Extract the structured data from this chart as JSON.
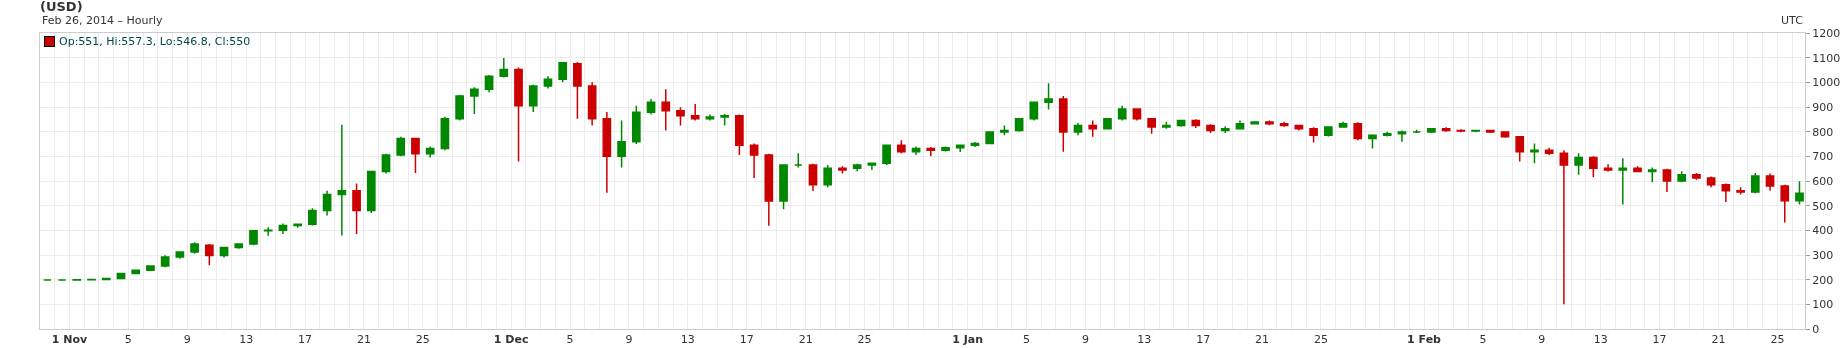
{
  "chart_data": {
    "type": "candlestick",
    "title": "(USD)",
    "subtitle": "Feb 26, 2014 – Hourly",
    "annotations": [
      "UTC",
      "Op:551, Hi:557.3, Lo:546.8, Cl:550"
    ],
    "x": [
      "2013-10-30T12:00",
      "2013-10-31T12:00",
      "2013-11-01T12:00",
      "2013-11-02T12:00",
      "2013-11-03T12:00",
      "2013-11-04T12:00",
      "2013-11-05T12:00",
      "2013-11-06T12:00",
      "2013-11-07T12:00",
      "2013-11-08T12:00",
      "2013-11-09T12:00",
      "2013-11-10T12:00",
      "2013-11-11T12:00",
      "2013-11-12T12:00",
      "2013-11-13T12:00",
      "2013-11-14T12:00",
      "2013-11-15T12:00",
      "2013-11-16T12:00",
      "2013-11-17T12:00",
      "2013-11-18T12:00",
      "2013-11-19T12:00",
      "2013-11-20T12:00",
      "2013-11-21T12:00",
      "2013-11-22T12:00",
      "2013-11-23T12:00",
      "2013-11-24T12:00",
      "2013-11-25T12:00",
      "2013-11-26T12:00",
      "2013-11-27T12:00",
      "2013-11-28T12:00",
      "2013-11-29T12:00",
      "2013-11-30T12:00",
      "2013-12-01T12:00",
      "2013-12-02T12:00",
      "2013-12-03T12:00",
      "2013-12-04T12:00",
      "2013-12-05T12:00",
      "2013-12-06T12:00",
      "2013-12-07T12:00",
      "2013-12-08T12:00",
      "2013-12-09T12:00",
      "2013-12-10T12:00",
      "2013-12-11T12:00",
      "2013-12-12T12:00",
      "2013-12-13T12:00",
      "2013-12-14T12:00",
      "2013-12-15T12:00",
      "2013-12-16T12:00",
      "2013-12-17T12:00",
      "2013-12-18T12:00",
      "2013-12-19T12:00",
      "2013-12-20T12:00",
      "2013-12-21T12:00",
      "2013-12-22T12:00",
      "2013-12-23T12:00",
      "2013-12-24T12:00",
      "2013-12-25T12:00",
      "2013-12-26T12:00",
      "2013-12-27T12:00",
      "2013-12-28T12:00",
      "2013-12-29T12:00",
      "2013-12-30T12:00",
      "2013-12-31T12:00",
      "2014-01-01T12:00",
      "2014-01-02T12:00",
      "2014-01-03T12:00",
      "2014-01-04T12:00",
      "2014-01-05T12:00",
      "2014-01-06T12:00",
      "2014-01-07T12:00",
      "2014-01-08T12:00",
      "2014-01-09T12:00",
      "2014-01-10T12:00",
      "2014-01-11T12:00",
      "2014-01-12T12:00",
      "2014-01-13T12:00",
      "2014-01-14T12:00",
      "2014-01-15T12:00",
      "2014-01-16T12:00",
      "2014-01-17T12:00",
      "2014-01-18T12:00",
      "2014-01-19T12:00",
      "2014-01-20T12:00",
      "2014-01-21T12:00",
      "2014-01-22T12:00",
      "2014-01-23T12:00",
      "2014-01-24T12:00",
      "2014-01-25T12:00",
      "2014-01-26T12:00",
      "2014-01-27T12:00",
      "2014-01-28T12:00",
      "2014-01-29T12:00",
      "2014-01-30T12:00",
      "2014-01-31T12:00",
      "2014-02-01T12:00",
      "2014-02-02T12:00",
      "2014-02-03T12:00",
      "2014-02-04T12:00",
      "2014-02-05T12:00",
      "2014-02-06T12:00",
      "2014-02-07T12:00",
      "2014-02-08T12:00",
      "2014-02-09T12:00",
      "2014-02-10T12:00",
      "2014-02-11T12:00",
      "2014-02-12T12:00",
      "2014-02-13T12:00",
      "2014-02-14T12:00",
      "2014-02-15T12:00",
      "2014-02-16T12:00",
      "2014-02-17T12:00",
      "2014-02-18T12:00",
      "2014-02-19T12:00",
      "2014-02-20T12:00",
      "2014-02-21T12:00",
      "2014-02-22T12:00",
      "2014-02-23T12:00",
      "2014-02-24T12:00",
      "2014-02-25T12:00",
      "2014-02-26T12:00"
    ],
    "ohlc": [
      [
        199,
        202,
        196,
        199
      ],
      [
        199,
        201,
        196,
        199
      ],
      [
        199,
        202,
        197,
        200
      ],
      [
        200,
        202,
        198,
        201
      ],
      [
        201,
        206,
        200,
        205
      ],
      [
        205,
        226,
        203,
        225
      ],
      [
        225,
        240,
        222,
        238
      ],
      [
        238,
        258,
        235,
        255
      ],
      [
        255,
        299,
        250,
        292
      ],
      [
        292,
        315,
        285,
        312
      ],
      [
        312,
        352,
        305,
        345
      ],
      [
        340,
        345,
        258,
        298
      ],
      [
        298,
        332,
        290,
        330
      ],
      [
        330,
        348,
        325,
        345
      ],
      [
        345,
        400,
        340,
        398
      ],
      [
        398,
        412,
        378,
        400
      ],
      [
        400,
        428,
        385,
        420
      ],
      [
        420,
        428,
        410,
        425
      ],
      [
        425,
        490,
        420,
        480
      ],
      [
        480,
        560,
        460,
        545
      ],
      [
        545,
        828,
        379,
        560
      ],
      [
        560,
        590,
        385,
        480
      ],
      [
        480,
        639,
        470,
        639
      ],
      [
        639,
        710,
        630,
        705
      ],
      [
        705,
        779,
        700,
        772
      ],
      [
        772,
        775,
        632,
        710
      ],
      [
        710,
        740,
        695,
        732
      ],
      [
        732,
        860,
        725,
        852
      ],
      [
        852,
        950,
        845,
        945
      ],
      [
        945,
        980,
        872,
        972
      ],
      [
        972,
        1030,
        960,
        1025
      ],
      [
        1025,
        1099,
        1020,
        1052
      ],
      [
        1052,
        1060,
        679,
        905
      ],
      [
        905,
        990,
        880,
        985
      ],
      [
        985,
        1025,
        975,
        1012
      ],
      [
        1012,
        1081,
        1000,
        1079
      ],
      [
        1075,
        1082,
        852,
        985
      ],
      [
        985,
        1000,
        825,
        852
      ],
      [
        852,
        880,
        552,
        700
      ],
      [
        700,
        845,
        655,
        759
      ],
      [
        759,
        905,
        750,
        879
      ],
      [
        879,
        932,
        870,
        919
      ],
      [
        919,
        972,
        805,
        885
      ],
      [
        885,
        899,
        825,
        865
      ],
      [
        865,
        912,
        845,
        852
      ],
      [
        852,
        870,
        845,
        859
      ],
      [
        859,
        872,
        825,
        865
      ],
      [
        865,
        870,
        705,
        745
      ],
      [
        745,
        752,
        612,
        705
      ],
      [
        705,
        710,
        419,
        519
      ],
      [
        519,
        665,
        485,
        665
      ],
      [
        665,
        712,
        655,
        665
      ],
      [
        665,
        670,
        559,
        585
      ],
      [
        585,
        665,
        575,
        652
      ],
      [
        652,
        660,
        630,
        645
      ],
      [
        652,
        670,
        640,
        665
      ],
      [
        665,
        675,
        645,
        672
      ],
      [
        672,
        748,
        665,
        745
      ],
      [
        745,
        765,
        712,
        719
      ],
      [
        719,
        740,
        705,
        732
      ],
      [
        732,
        738,
        700,
        725
      ],
      [
        725,
        740,
        720,
        735
      ],
      [
        735,
        745,
        718,
        745
      ],
      [
        745,
        758,
        738,
        752
      ],
      [
        752,
        799,
        752,
        799
      ],
      [
        799,
        825,
        785,
        805
      ],
      [
        805,
        855,
        800,
        852
      ],
      [
        852,
        919,
        845,
        919
      ],
      [
        919,
        996,
        890,
        932
      ],
      [
        932,
        945,
        719,
        799
      ],
      [
        799,
        835,
        785,
        825
      ],
      [
        825,
        845,
        779,
        812
      ],
      [
        812,
        852,
        812,
        852
      ],
      [
        852,
        905,
        845,
        892
      ],
      [
        892,
        895,
        845,
        852
      ],
      [
        852,
        852,
        792,
        819
      ],
      [
        819,
        840,
        812,
        825
      ],
      [
        825,
        848,
        820,
        845
      ],
      [
        845,
        850,
        815,
        825
      ],
      [
        825,
        830,
        795,
        805
      ],
      [
        805,
        822,
        795,
        812
      ],
      [
        812,
        845,
        812,
        832
      ],
      [
        832,
        839,
        832,
        839
      ],
      [
        839,
        845,
        826,
        832
      ],
      [
        832,
        840,
        820,
        825
      ],
      [
        825,
        825,
        805,
        812
      ],
      [
        812,
        818,
        756,
        785
      ],
      [
        785,
        822,
        780,
        819
      ],
      [
        819,
        840,
        819,
        832
      ],
      [
        832,
        838,
        765,
        772
      ],
      [
        772,
        790,
        732,
        785
      ],
      [
        785,
        800,
        780,
        792
      ],
      [
        792,
        805,
        759,
        799
      ],
      [
        799,
        808,
        795,
        799
      ],
      [
        799,
        815,
        795,
        812
      ],
      [
        812,
        818,
        800,
        805
      ],
      [
        805,
        810,
        798,
        803
      ],
      [
        803,
        808,
        798,
        805
      ],
      [
        805,
        808,
        795,
        799
      ],
      [
        799,
        800,
        775,
        779
      ],
      [
        779,
        780,
        679,
        719
      ],
      [
        719,
        752,
        672,
        725
      ],
      [
        725,
        735,
        705,
        712
      ],
      [
        712,
        725,
        100,
        665
      ],
      [
        665,
        712,
        625,
        695
      ],
      [
        695,
        700,
        615,
        652
      ],
      [
        652,
        668,
        639,
        645
      ],
      [
        645,
        692,
        505,
        652
      ],
      [
        652,
        660,
        635,
        639
      ],
      [
        639,
        655,
        595,
        645
      ],
      [
        645,
        650,
        555,
        600
      ],
      [
        600,
        640,
        595,
        625
      ],
      [
        625,
        632,
        605,
        612
      ],
      [
        612,
        618,
        575,
        585
      ],
      [
        585,
        590,
        515,
        560
      ],
      [
        560,
        575,
        545,
        555
      ],
      [
        555,
        632,
        550,
        620
      ],
      [
        620,
        630,
        560,
        580
      ],
      [
        580,
        585,
        432,
        520
      ],
      [
        520,
        599,
        505,
        550
      ]
    ],
    "xlim": [
      "2013-10-30",
      "2014-02-26T21:00"
    ],
    "xticks": [
      {
        "value": "2013-10-30",
        "label": null
      },
      {
        "value": "2013-10-31",
        "label": null
      },
      {
        "value": "2013-11-01",
        "label": "1 Nov"
      },
      {
        "value": "2013-11-02",
        "label": null
      },
      {
        "value": "2013-11-03",
        "label": null
      },
      {
        "value": "2013-11-04",
        "label": null
      },
      {
        "value": "2013-11-05",
        "label": "5"
      },
      {
        "value": "2013-11-06",
        "label": null
      },
      {
        "value": "2013-11-07",
        "label": null
      },
      {
        "value": "2013-11-08",
        "label": null
      },
      {
        "value": "2013-11-09",
        "label": "9"
      },
      {
        "value": "2013-11-10",
        "label": null
      },
      {
        "value": "2013-11-11",
        "label": null
      },
      {
        "value": "2013-11-12",
        "label": null
      },
      {
        "value": "2013-11-13",
        "label": "13"
      },
      {
        "value": "2013-11-14",
        "label": null
      },
      {
        "value": "2013-11-15",
        "label": null
      },
      {
        "value": "2013-11-16",
        "label": null
      },
      {
        "value": "2013-11-17",
        "label": "17"
      },
      {
        "value": "2013-11-18",
        "label": null
      },
      {
        "value": "2013-11-19",
        "label": null
      },
      {
        "value": "2013-11-20",
        "label": null
      },
      {
        "value": "2013-11-21",
        "label": "21"
      },
      {
        "value": "2013-11-22",
        "label": null
      },
      {
        "value": "2013-11-23",
        "label": null
      },
      {
        "value": "2013-11-24",
        "label": null
      },
      {
        "value": "2013-11-25",
        "label": "25"
      },
      {
        "value": "2013-11-26",
        "label": null
      },
      {
        "value": "2013-11-27",
        "label": null
      },
      {
        "value": "2013-11-28",
        "label": null
      },
      {
        "value": "2013-11-29",
        "label": null
      },
      {
        "value": "2013-11-30",
        "label": null
      },
      {
        "value": "2013-12-01",
        "label": "1 Dec"
      },
      {
        "value": "2013-12-02",
        "label": null
      },
      {
        "value": "2013-12-03",
        "label": null
      },
      {
        "value": "2013-12-04",
        "label": null
      },
      {
        "value": "2013-12-05",
        "label": "5"
      },
      {
        "value": "2013-12-06",
        "label": null
      },
      {
        "value": "2013-12-07",
        "label": null
      },
      {
        "value": "2013-12-08",
        "label": null
      },
      {
        "value": "2013-12-09",
        "label": "9"
      },
      {
        "value": "2013-12-10",
        "label": null
      },
      {
        "value": "2013-12-11",
        "label": null
      },
      {
        "value": "2013-12-12",
        "label": null
      },
      {
        "value": "2013-12-13",
        "label": "13"
      },
      {
        "value": "2013-12-14",
        "label": null
      },
      {
        "value": "2013-12-15",
        "label": null
      },
      {
        "value": "2013-12-16",
        "label": null
      },
      {
        "value": "2013-12-17",
        "label": "17"
      },
      {
        "value": "2013-12-18",
        "label": null
      },
      {
        "value": "2013-12-19",
        "label": null
      },
      {
        "value": "2013-12-20",
        "label": null
      },
      {
        "value": "2013-12-21",
        "label": "21"
      },
      {
        "value": "2013-12-22",
        "label": null
      },
      {
        "value": "2013-12-23",
        "label": null
      },
      {
        "value": "2013-12-24",
        "label": null
      },
      {
        "value": "2013-12-25",
        "label": "25"
      },
      {
        "value": "2013-12-26",
        "label": null
      },
      {
        "value": "2013-12-27",
        "label": null
      },
      {
        "value": "2013-12-28",
        "label": null
      },
      {
        "value": "2013-12-29",
        "label": null
      },
      {
        "value": "2013-12-30",
        "label": null
      },
      {
        "value": "2013-12-31",
        "label": null
      },
      {
        "value": "2014-01-01",
        "label": "1 Jan"
      },
      {
        "value": "2014-01-02",
        "label": null
      },
      {
        "value": "2014-01-03",
        "label": null
      },
      {
        "value": "2014-01-04",
        "label": null
      },
      {
        "value": "2014-01-05",
        "label": "5"
      },
      {
        "value": "2014-01-06",
        "label": null
      },
      {
        "value": "2014-01-07",
        "label": null
      },
      {
        "value": "2014-01-08",
        "label": null
      },
      {
        "value": "2014-01-09",
        "label": "9"
      },
      {
        "value": "2014-01-10",
        "label": null
      },
      {
        "value": "2014-01-11",
        "label": null
      },
      {
        "value": "2014-01-12",
        "label": null
      },
      {
        "value": "2014-01-13",
        "label": "13"
      },
      {
        "value": "2014-01-14",
        "label": null
      },
      {
        "value": "2014-01-15",
        "label": null
      },
      {
        "value": "2014-01-16",
        "label": null
      },
      {
        "value": "2014-01-17",
        "label": "17"
      },
      {
        "value": "2014-01-18",
        "label": null
      },
      {
        "value": "2014-01-19",
        "label": null
      },
      {
        "value": "2014-01-20",
        "label": null
      },
      {
        "value": "2014-01-21",
        "label": "21"
      },
      {
        "value": "2014-01-22",
        "label": null
      },
      {
        "value": "2014-01-23",
        "label": null
      },
      {
        "value": "2014-01-24",
        "label": null
      },
      {
        "value": "2014-01-25",
        "label": "25"
      },
      {
        "value": "2014-01-26",
        "label": null
      },
      {
        "value": "2014-01-27",
        "label": null
      },
      {
        "value": "2014-01-28",
        "label": null
      },
      {
        "value": "2014-01-29",
        "label": null
      },
      {
        "value": "2014-01-30",
        "label": null
      },
      {
        "value": "2014-01-31",
        "label": null
      },
      {
        "value": "2014-02-01",
        "label": "1 Feb"
      },
      {
        "value": "2014-02-02",
        "label": null
      },
      {
        "value": "2014-02-03",
        "label": null
      },
      {
        "value": "2014-02-04",
        "label": null
      },
      {
        "value": "2014-02-05",
        "label": "5"
      },
      {
        "value": "2014-02-06",
        "label": null
      },
      {
        "value": "2014-02-07",
        "label": null
      },
      {
        "value": "2014-02-08",
        "label": null
      },
      {
        "value": "2014-02-09",
        "label": "9"
      },
      {
        "value": "2014-02-10",
        "label": null
      },
      {
        "value": "2014-02-11",
        "label": null
      },
      {
        "value": "2014-02-12",
        "label": null
      },
      {
        "value": "2014-02-13",
        "label": "13"
      },
      {
        "value": "2014-02-14",
        "label": null
      },
      {
        "value": "2014-02-15",
        "label": null
      },
      {
        "value": "2014-02-16",
        "label": null
      },
      {
        "value": "2014-02-17",
        "label": "17"
      },
      {
        "value": "2014-02-18",
        "label": null
      },
      {
        "value": "2014-02-19",
        "label": null
      },
      {
        "value": "2014-02-20",
        "label": null
      },
      {
        "value": "2014-02-21",
        "label": "21"
      },
      {
        "value": "2014-02-22",
        "label": null
      },
      {
        "value": "2014-02-23",
        "label": null
      },
      {
        "value": "2014-02-24",
        "label": null
      },
      {
        "value": "2014-02-25",
        "label": "25"
      },
      {
        "value": "2014-02-26",
        "label": null
      }
    ],
    "ylim": [
      0,
      1200
    ],
    "yticks": [
      0,
      100,
      200,
      300,
      400,
      500,
      600,
      700,
      800,
      900,
      1000,
      1100,
      1200
    ],
    "grid": true
  }
}
